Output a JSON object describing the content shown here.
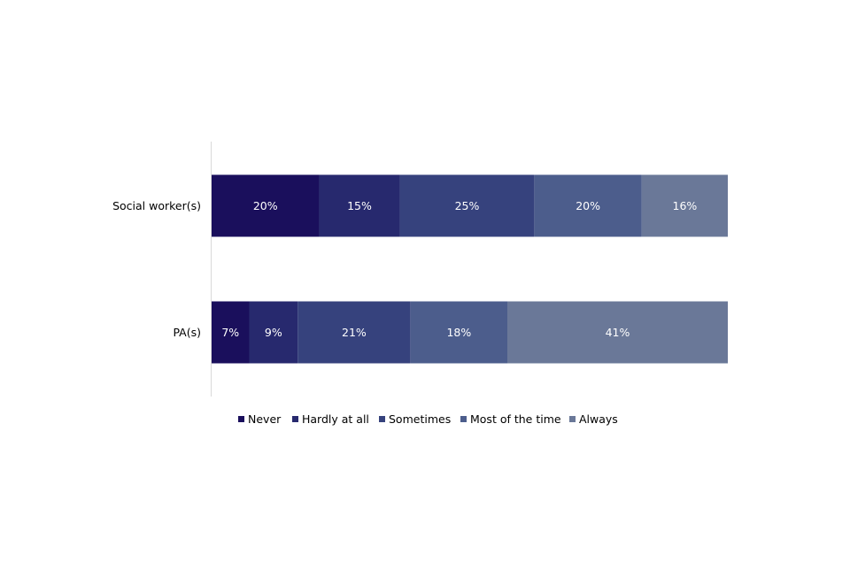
{
  "chart_data": {
    "type": "bar",
    "orientation": "horizontal",
    "stacked": true,
    "title": "",
    "xlabel": "",
    "ylabel": "",
    "categories": [
      "Social worker(s)",
      "PA(s)"
    ],
    "series": [
      {
        "name": "Never",
        "values": [
          20,
          7
        ],
        "labels": [
          "20%",
          "7%"
        ],
        "color": "#1a0f5c"
      },
      {
        "name": "Hardly at all",
        "values": [
          15,
          9
        ],
        "labels": [
          "15%",
          "9%"
        ],
        "color": "#27296e"
      },
      {
        "name": "Sometimes",
        "values": [
          25,
          21
        ],
        "labels": [
          "25%",
          "21%"
        ],
        "color": "#36427d"
      },
      {
        "name": "Most of the time",
        "values": [
          20,
          18
        ],
        "labels": [
          "20%",
          "18%"
        ],
        "color": "#4c5d8c"
      },
      {
        "name": "Always",
        "values": [
          16,
          41
        ],
        "labels": [
          "16%",
          "41%"
        ],
        "color": "#6a7898"
      }
    ],
    "label_color": "#ffffff",
    "axis_color": "#d9d9d9",
    "text_color": "#000000",
    "grid": false,
    "legend_position": "bottom"
  }
}
